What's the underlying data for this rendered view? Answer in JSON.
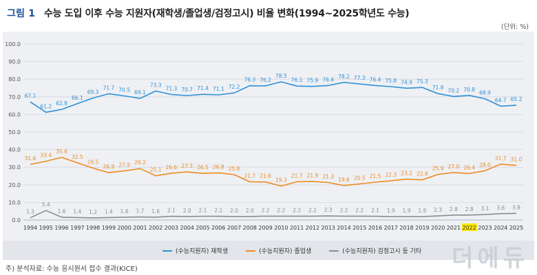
{
  "header": {
    "figure_label": "그림 1",
    "title": "수능 도입 이후 수능 지원자(재학생/졸업생/검정고시) 비율 변화(1994~2025학년도 수능)",
    "unit": "(단위: %)"
  },
  "footer": {
    "source": "주) 분석자료: 수능 응시원서 접수 결과(KICE)",
    "watermark": "더에듀"
  },
  "colors": {
    "series_1": "#2f8fd6",
    "series_2": "#ef8a1f",
    "series_3": "#8c8c8c",
    "highlight": "#ffe600",
    "grid": "#d5d8de"
  },
  "chart_data": {
    "type": "line",
    "title": "",
    "xlabel": "",
    "ylabel": "",
    "ylim": [
      0,
      100
    ],
    "yticks": [
      "0.0",
      "10.0",
      "20.0",
      "30.0",
      "40.0",
      "50.0",
      "60.0",
      "70.0",
      "80.0",
      "90.0",
      "100.0"
    ],
    "grid": true,
    "legend_position": "bottom",
    "highlighted_category": "2022",
    "categories": [
      "1994",
      "1995",
      "1996",
      "1997",
      "1998",
      "1999",
      "2000",
      "2001",
      "2002",
      "2003",
      "2004",
      "2005",
      "2006",
      "2007",
      "2008",
      "2009",
      "2010",
      "2011",
      "2012",
      "2013",
      "2014",
      "2015",
      "2016",
      "2017",
      "2018",
      "2019",
      "2020",
      "2021",
      "2022",
      "2023",
      "2024",
      "2025"
    ],
    "series": [
      {
        "name": "(수능지원자) 재학생",
        "values": [
          67.1,
          61.2,
          62.8,
          66.1,
          69.3,
          71.7,
          70.5,
          69.1,
          73.3,
          71.3,
          70.7,
          71.4,
          71.1,
          72.2,
          76.3,
          76.2,
          78.5,
          76.1,
          75.9,
          76.4,
          78.2,
          77.3,
          76.4,
          75.8,
          74.9,
          75.3,
          71.8,
          70.2,
          70.8,
          68.9,
          64.7,
          65.2
        ]
      },
      {
        "name": "(수능지원자) 졸업생",
        "values": [
          31.6,
          33.4,
          35.6,
          32.5,
          29.5,
          26.9,
          27.9,
          29.2,
          25.1,
          26.6,
          27.3,
          26.5,
          26.8,
          25.8,
          21.7,
          21.6,
          19.3,
          21.7,
          21.9,
          21.3,
          19.6,
          20.5,
          21.5,
          22.3,
          23.2,
          22.8,
          25.9,
          27.0,
          26.4,
          28.0,
          31.7,
          31.0
        ]
      },
      {
        "name": "(수능지원자) 검정고시 등 기타",
        "values": [
          1.3,
          5.4,
          1.6,
          1.4,
          1.2,
          1.4,
          1.6,
          1.7,
          1.6,
          2.1,
          2.0,
          2.1,
          2.1,
          2.0,
          2.0,
          2.2,
          2.2,
          2.2,
          2.2,
          2.3,
          2.2,
          2.2,
          2.1,
          1.9,
          1.9,
          1.9,
          2.3,
          2.8,
          2.8,
          3.1,
          3.6,
          3.8
        ]
      }
    ]
  }
}
